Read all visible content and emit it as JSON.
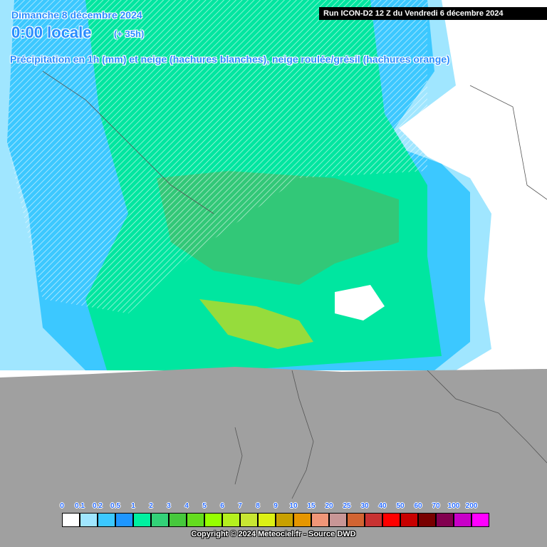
{
  "header": {
    "date": "Dimanche 8 décembre 2024",
    "time": "0:00 locale",
    "lead": "(+ 35h)",
    "run": "Run ICON-D2 12 Z du Vendredi 6 décembre 2024",
    "subtitle": "Précipitation en 1h (mm) et neige (hachures blanches), neige roulée/grésil (hachures orange)"
  },
  "legend": {
    "items": [
      {
        "label": "0",
        "color": "#ffffff"
      },
      {
        "label": "0.1",
        "color": "#a0e6ff"
      },
      {
        "label": "0.2",
        "color": "#3cc8ff"
      },
      {
        "label": "0.5",
        "color": "#1e96ff"
      },
      {
        "label": "1",
        "color": "#00f0a0"
      },
      {
        "label": "2",
        "color": "#32d278"
      },
      {
        "label": "3",
        "color": "#46c83c"
      },
      {
        "label": "4",
        "color": "#64dc1e"
      },
      {
        "label": "5",
        "color": "#96ff00"
      },
      {
        "label": "6",
        "color": "#b4f01e"
      },
      {
        "label": "7",
        "color": "#c8e632"
      },
      {
        "label": "8",
        "color": "#dcf014"
      },
      {
        "label": "9",
        "color": "#c8a000"
      },
      {
        "label": "10",
        "color": "#e69600"
      },
      {
        "label": "15",
        "color": "#f09678"
      },
      {
        "label": "20",
        "color": "#c89696"
      },
      {
        "label": "25",
        "color": "#d26432"
      },
      {
        "label": "30",
        "color": "#c83232"
      },
      {
        "label": "40",
        "color": "#ff0000"
      },
      {
        "label": "50",
        "color": "#c80000"
      },
      {
        "label": "60",
        "color": "#780000"
      },
      {
        "label": "70",
        "color": "#820050"
      },
      {
        "label": "100",
        "color": "#c800c8"
      },
      {
        "label": "200",
        "color": "#ff00ff"
      }
    ]
  },
  "footer": {
    "copyright": "Copyright © 2024 Meteociel.fr - Source DWD"
  }
}
